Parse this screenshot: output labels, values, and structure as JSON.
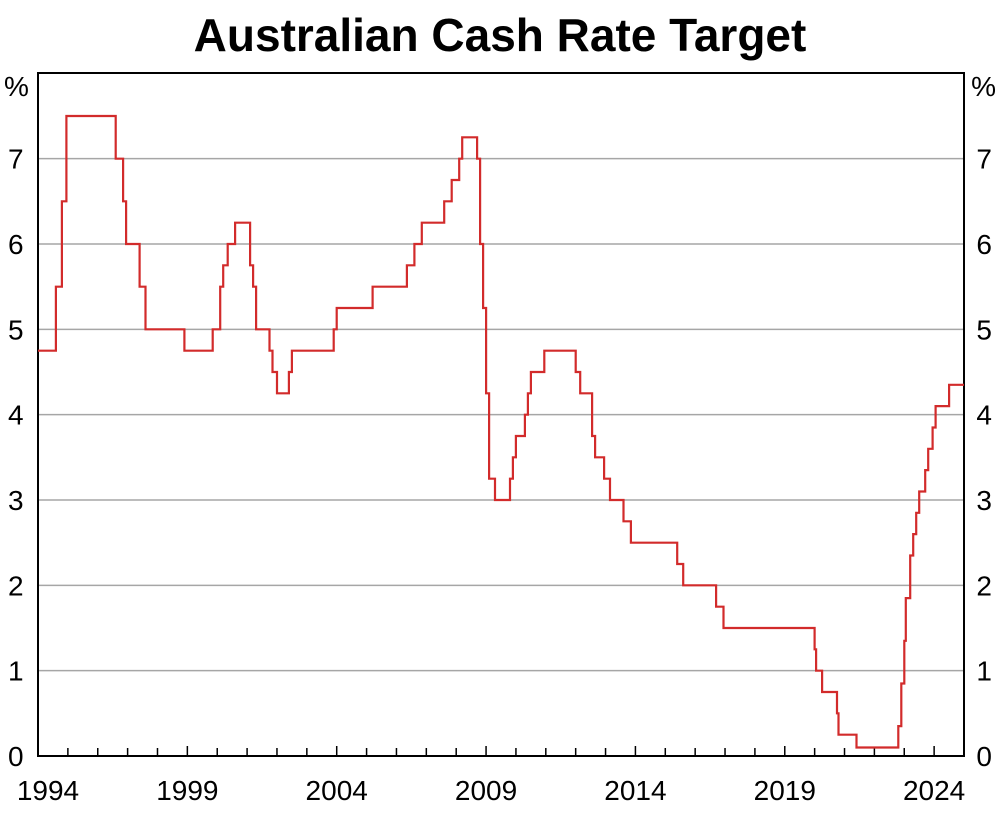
{
  "chart_data": {
    "type": "line",
    "title": "Australian Cash Rate Target",
    "y_unit_left": "%",
    "y_unit_right": "%",
    "xlabel": "",
    "ylabel": "",
    "xlim": [
      1994.0,
      2025.0
    ],
    "ylim": [
      0,
      7.5
    ],
    "y_ticks": [
      "0",
      "1",
      "2",
      "3",
      "4",
      "5",
      "6",
      "7"
    ],
    "y_tick_values": [
      0,
      1,
      2,
      3,
      4,
      5,
      6,
      7
    ],
    "x_tick_labels": [
      "1994",
      "1999",
      "2004",
      "2009",
      "2014",
      "2019",
      "2024"
    ],
    "x_tick_values": [
      1994,
      1999,
      2004,
      2009,
      2014,
      2019,
      2024
    ],
    "grid": true,
    "line_color": "#d22b2b",
    "series": [
      {
        "points": [
          [
            1994.0,
            4.75
          ],
          [
            1994.6,
            5.5
          ],
          [
            1994.8,
            6.5
          ],
          [
            1994.95,
            7.5
          ],
          [
            1996.6,
            7.0
          ],
          [
            1996.85,
            6.5
          ],
          [
            1996.95,
            6.0
          ],
          [
            1997.4,
            5.5
          ],
          [
            1997.6,
            5.0
          ],
          [
            1998.9,
            4.75
          ],
          [
            1999.85,
            5.0
          ],
          [
            2000.1,
            5.5
          ],
          [
            2000.2,
            5.75
          ],
          [
            2000.35,
            6.0
          ],
          [
            2000.6,
            6.25
          ],
          [
            2001.1,
            5.75
          ],
          [
            2001.2,
            5.5
          ],
          [
            2001.3,
            5.0
          ],
          [
            2001.75,
            4.75
          ],
          [
            2001.85,
            4.5
          ],
          [
            2002.0,
            4.25
          ],
          [
            2002.4,
            4.5
          ],
          [
            2002.5,
            4.75
          ],
          [
            2003.9,
            5.0
          ],
          [
            2004.0,
            5.25
          ],
          [
            2005.2,
            5.5
          ],
          [
            2006.35,
            5.75
          ],
          [
            2006.6,
            6.0
          ],
          [
            2006.85,
            6.25
          ],
          [
            2007.6,
            6.5
          ],
          [
            2007.85,
            6.75
          ],
          [
            2008.1,
            7.0
          ],
          [
            2008.2,
            7.25
          ],
          [
            2008.7,
            7.0
          ],
          [
            2008.8,
            6.0
          ],
          [
            2008.9,
            5.25
          ],
          [
            2009.0,
            4.25
          ],
          [
            2009.1,
            3.25
          ],
          [
            2009.3,
            3.0
          ],
          [
            2009.8,
            3.25
          ],
          [
            2009.9,
            3.5
          ],
          [
            2010.0,
            3.75
          ],
          [
            2010.3,
            4.0
          ],
          [
            2010.4,
            4.25
          ],
          [
            2010.5,
            4.5
          ],
          [
            2010.95,
            4.75
          ],
          [
            2012.0,
            4.5
          ],
          [
            2012.15,
            4.25
          ],
          [
            2012.55,
            3.75
          ],
          [
            2012.65,
            3.5
          ],
          [
            2012.95,
            3.25
          ],
          [
            2013.15,
            3.0
          ],
          [
            2013.6,
            2.75
          ],
          [
            2013.85,
            2.5
          ],
          [
            2015.4,
            2.25
          ],
          [
            2015.6,
            2.0
          ],
          [
            2016.7,
            1.75
          ],
          [
            2016.95,
            1.5
          ],
          [
            2020.0,
            1.25
          ],
          [
            2020.05,
            1.0
          ],
          [
            2020.25,
            0.75
          ],
          [
            2020.75,
            0.5
          ],
          [
            2020.8,
            0.25
          ],
          [
            2021.4,
            0.1
          ],
          [
            2022.8,
            0.35
          ],
          [
            2022.9,
            0.85
          ],
          [
            2023.0,
            1.35
          ],
          [
            2023.05,
            1.85
          ],
          [
            2023.2,
            2.35
          ],
          [
            2023.3,
            2.6
          ],
          [
            2023.4,
            2.85
          ],
          [
            2023.5,
            3.1
          ],
          [
            2023.7,
            3.35
          ],
          [
            2023.8,
            3.6
          ],
          [
            2023.95,
            3.85
          ],
          [
            2024.05,
            4.1
          ],
          [
            2024.5,
            4.35
          ],
          [
            2025.0,
            4.35
          ]
        ]
      }
    ]
  }
}
